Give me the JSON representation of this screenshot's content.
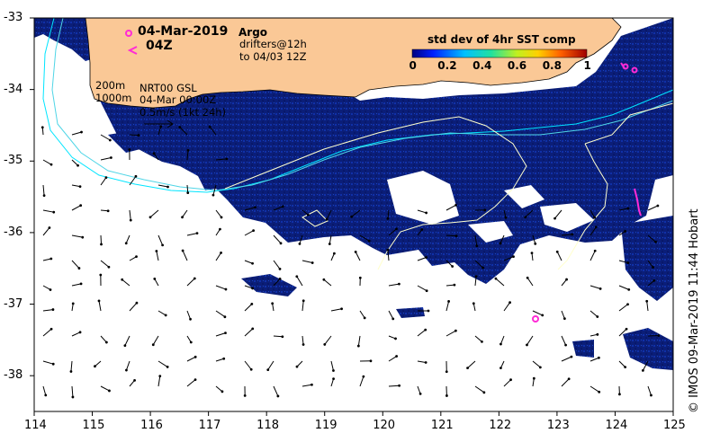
{
  "header": {
    "date": "04-Mar-2019",
    "hour": "04Z"
  },
  "legend": {
    "argo_label": "Argo",
    "drifters_line1": "drifters@12h",
    "drifters_line2": "to 04/03 12Z",
    "colorbar_title": "std dev of 4hr SST comp",
    "colorbar_ticks": [
      "0",
      "0.2",
      "0.4",
      "0.6",
      "0.8",
      "1"
    ]
  },
  "annotations": {
    "contour_200": "200m",
    "contour_1000": "1000m",
    "product": "NRT00 GSL",
    "time": "04-Mar 00:00Z",
    "scale": "0.5m/s (1kt 24h)"
  },
  "axes": {
    "lon_ticks": [
      "114",
      "115",
      "116",
      "117",
      "118",
      "119",
      "120",
      "121",
      "122",
      "123",
      "124",
      "125"
    ],
    "lat_ticks": [
      "-33",
      "-34",
      "-35",
      "-36",
      "-37",
      "-38"
    ],
    "lon_range": [
      114,
      125
    ],
    "lat_range": [
      -38.5,
      -33
    ]
  },
  "credit": "© IMOS 09-Mar-2019 11:44 Hobart",
  "colors": {
    "land": "#FAC896",
    "sst_std_low": "#0B1E78",
    "contour_200": "#00E5FF",
    "contour_1000": "#4FD5E6",
    "ssh_contour": "#FFFFCC",
    "argo_marker": "#FF2BD6"
  }
}
